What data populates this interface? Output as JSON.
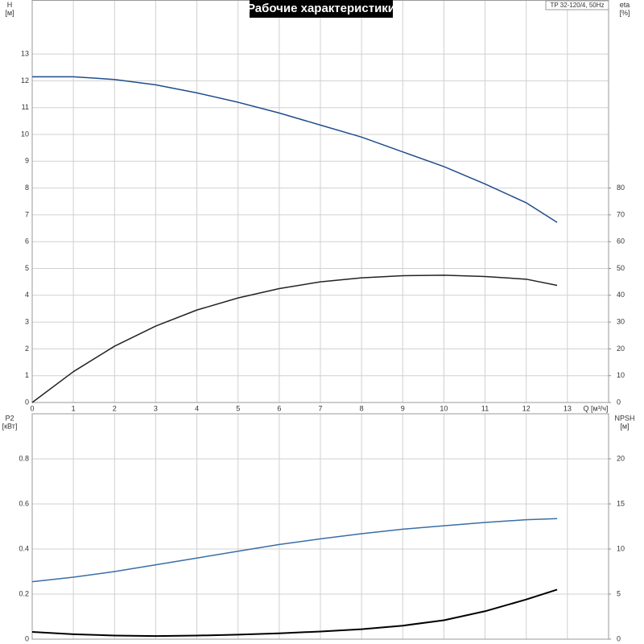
{
  "header": {
    "title": "Рабочие характеристики",
    "model": "TP 32-120/4, 50Hz"
  },
  "chart_data": [
    {
      "type": "line",
      "ylabel": "H",
      "yunit": "[м]",
      "y2label": "eta",
      "y2unit": "[%]",
      "xlabel": "Q [м³/ч]",
      "xlim": [
        0,
        14
      ],
      "xticks": [
        0,
        1,
        2,
        3,
        4,
        5,
        6,
        7,
        8,
        9,
        10,
        11,
        12,
        13
      ],
      "xtick_labels": true,
      "ylim": [
        0,
        15
      ],
      "yticks": [
        0,
        1,
        2,
        3,
        4,
        5,
        6,
        7,
        8,
        9,
        10,
        11,
        12,
        13
      ],
      "y2lim": [
        0,
        150
      ],
      "y2ticks": [
        0,
        10,
        20,
        30,
        40,
        50,
        60,
        70,
        80
      ],
      "grid": true,
      "x": [
        0,
        1,
        2,
        3,
        4,
        5,
        6,
        7,
        8,
        9,
        10,
        11,
        12,
        12.75
      ],
      "series": [
        {
          "color": "#1f4e8c",
          "values": [
            12.15,
            12.15,
            12.05,
            11.85,
            11.55,
            11.2,
            10.8,
            10.35,
            9.9,
            9.35,
            8.8,
            8.15,
            7.45,
            6.72
          ]
        },
        {
          "color": "#222222",
          "axis": "y2",
          "values": [
            0,
            11.5,
            21,
            28.5,
            34.5,
            39,
            42.5,
            45,
            46.5,
            47.3,
            47.5,
            47,
            46,
            43.7
          ]
        }
      ]
    },
    {
      "type": "line",
      "ylabel": "P2",
      "yunit": "[кВт]",
      "y2label": "NPSH",
      "y2unit": "[м]",
      "xlim": [
        0,
        14
      ],
      "xticks": [
        0,
        1,
        2,
        3,
        4,
        5,
        6,
        7,
        8,
        9,
        10,
        11,
        12,
        13
      ],
      "xtick_labels": false,
      "ylim": [
        0,
        1
      ],
      "yticks": [
        0,
        0.2,
        0.4,
        0.6,
        0.8
      ],
      "y2lim": [
        0,
        25
      ],
      "y2ticks": [
        0,
        5,
        10,
        15,
        20
      ],
      "grid": true,
      "x": [
        0,
        1,
        2,
        3,
        4,
        5,
        6,
        7,
        8,
        9,
        10,
        11,
        12,
        12.75
      ],
      "series": [
        {
          "color": "#3a6ea5",
          "values": [
            0.255,
            0.275,
            0.3,
            0.33,
            0.36,
            0.39,
            0.42,
            0.445,
            0.468,
            0.488,
            0.503,
            0.518,
            0.53,
            0.535
          ]
        },
        {
          "color": "#000000",
          "axis": "y2",
          "width": 2,
          "values": [
            0.8,
            0.55,
            0.4,
            0.35,
            0.4,
            0.5,
            0.65,
            0.85,
            1.1,
            1.5,
            2.1,
            3.1,
            4.4,
            5.5
          ]
        }
      ]
    }
  ]
}
